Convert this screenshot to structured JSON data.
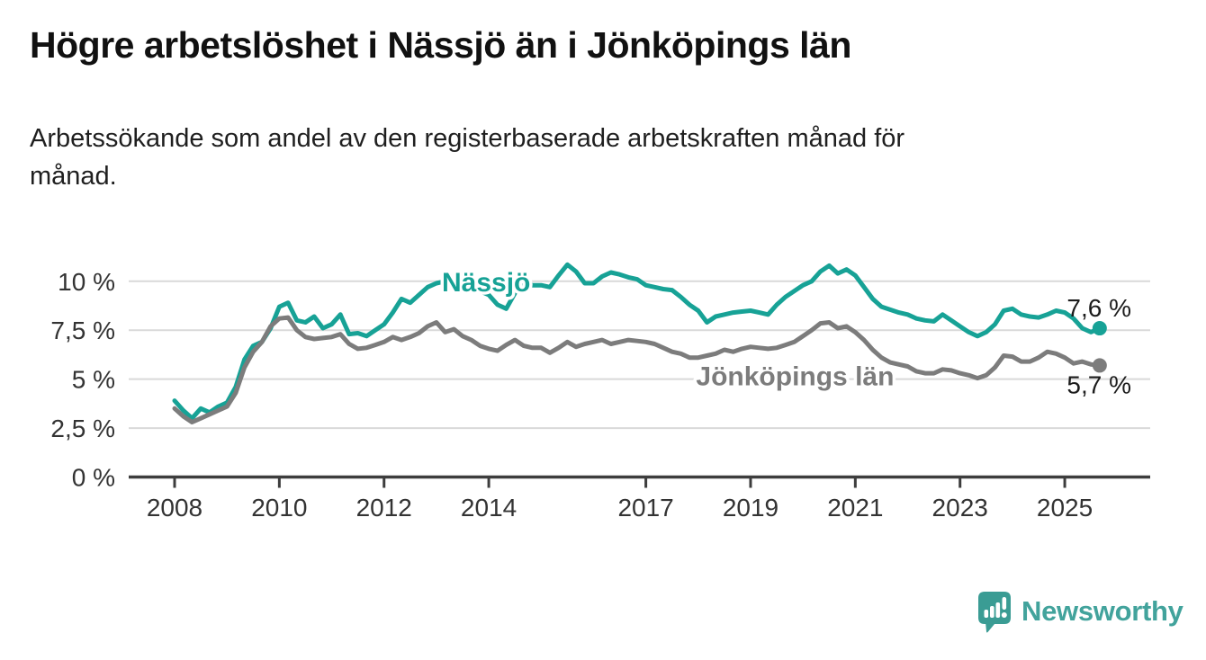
{
  "header": {
    "title": "Högre arbetslöshet i Nässjö än i Jönköpings län",
    "subtitle_line1": "Arbetssökande som andel av den registerbaserade arbetskraften månad för",
    "subtitle_line2": "månad."
  },
  "chart_data": {
    "type": "line",
    "title": "Högre arbetslöshet i Nässjö än i Jönköpings län",
    "subtitle": "Arbetssökande som andel av den registerbaserade arbetskraften månad för månad.",
    "unit": "% av registerbaserad arbetskraft",
    "x_start_year": 2008,
    "x_step_years": 0.16667,
    "x_end_year": 2025.67,
    "ylim": [
      0,
      11.6
    ],
    "grid": true,
    "legend_position": "inline-labels",
    "y_ticks": [
      {
        "value": 0,
        "label": "0 %"
      },
      {
        "value": 2.5,
        "label": "2,5 %"
      },
      {
        "value": 5,
        "label": "5 %"
      },
      {
        "value": 7.5,
        "label": "7,5 %"
      },
      {
        "value": 10,
        "label": "10 %"
      }
    ],
    "x_ticks": [
      {
        "value": 2008,
        "label": "2008"
      },
      {
        "value": 2010,
        "label": "2010"
      },
      {
        "value": 2012,
        "label": "2012"
      },
      {
        "value": 2014,
        "label": "2014"
      },
      {
        "value": 2017,
        "label": "2017"
      },
      {
        "value": 2019,
        "label": "2019"
      },
      {
        "value": 2021,
        "label": "2021"
      },
      {
        "value": 2023,
        "label": "2023"
      },
      {
        "value": 2025,
        "label": "2025"
      }
    ],
    "series": [
      {
        "name": "Nässjö",
        "color": "#17a296",
        "end_label": "7,6 %",
        "end_value": 7.6,
        "name_label_anchor": {
          "year": 2013.95,
          "value": 9.95
        },
        "values": [
          3.9,
          3.4,
          3.0,
          3.5,
          3.3,
          3.6,
          3.8,
          4.6,
          6.0,
          6.7,
          6.9,
          7.6,
          8.7,
          8.9,
          8.0,
          7.9,
          8.2,
          7.6,
          7.8,
          8.3,
          7.3,
          7.35,
          7.2,
          7.5,
          7.8,
          8.4,
          9.1,
          8.9,
          9.3,
          9.7,
          9.9,
          10.0,
          9.7,
          9.9,
          9.8,
          9.5,
          9.3,
          8.8,
          8.6,
          9.4,
          10.0,
          9.8,
          9.8,
          9.7,
          10.3,
          10.85,
          10.5,
          9.9,
          9.9,
          10.25,
          10.45,
          10.35,
          10.2,
          10.1,
          9.8,
          9.7,
          9.6,
          9.55,
          9.2,
          8.8,
          8.5,
          7.9,
          8.2,
          8.3,
          8.4,
          8.45,
          8.5,
          8.4,
          8.3,
          8.8,
          9.2,
          9.5,
          9.8,
          10.0,
          10.5,
          10.8,
          10.4,
          10.6,
          10.3,
          9.7,
          9.1,
          8.7,
          8.55,
          8.4,
          8.3,
          8.1,
          8.0,
          7.95,
          8.3,
          8.0,
          7.7,
          7.4,
          7.2,
          7.4,
          7.8,
          8.5,
          8.6,
          8.3,
          8.2,
          8.15,
          8.3,
          8.5,
          8.4,
          8.1,
          7.6,
          7.4,
          7.6
        ]
      },
      {
        "name": "Jönköpings län",
        "color": "#7c7c7c",
        "end_label": "5,7 %",
        "end_value": 5.7,
        "name_label_anchor": {
          "year": 2019.85,
          "value": 5.15
        },
        "values": [
          3.5,
          3.1,
          2.8,
          3.0,
          3.2,
          3.4,
          3.6,
          4.3,
          5.6,
          6.4,
          6.9,
          7.7,
          8.1,
          8.15,
          7.5,
          7.15,
          7.05,
          7.1,
          7.15,
          7.3,
          6.8,
          6.55,
          6.6,
          6.75,
          6.9,
          7.15,
          7.0,
          7.15,
          7.35,
          7.7,
          7.9,
          7.4,
          7.55,
          7.2,
          7.0,
          6.7,
          6.55,
          6.45,
          6.75,
          7.0,
          6.7,
          6.6,
          6.6,
          6.35,
          6.6,
          6.9,
          6.65,
          6.8,
          6.9,
          7.0,
          6.8,
          6.9,
          7.0,
          6.95,
          6.9,
          6.8,
          6.6,
          6.4,
          6.3,
          6.1,
          6.1,
          6.2,
          6.3,
          6.5,
          6.4,
          6.55,
          6.65,
          6.6,
          6.55,
          6.6,
          6.75,
          6.9,
          7.2,
          7.5,
          7.85,
          7.9,
          7.6,
          7.7,
          7.4,
          7.0,
          6.5,
          6.1,
          5.85,
          5.75,
          5.65,
          5.4,
          5.3,
          5.3,
          5.5,
          5.45,
          5.3,
          5.2,
          5.05,
          5.2,
          5.6,
          6.2,
          6.15,
          5.9,
          5.9,
          6.1,
          6.4,
          6.3,
          6.1,
          5.8,
          5.9,
          5.75,
          5.7
        ]
      }
    ],
    "axis_colors": {
      "axis_line": "#3d3d3d",
      "gridline": "#d9d9d9",
      "tick_text": "#333333"
    }
  },
  "footer": {
    "brand": "Newsworthy",
    "brand_color": "#42a39c",
    "logo_icon": "bar-chart-exclamation-speech-bubble"
  }
}
